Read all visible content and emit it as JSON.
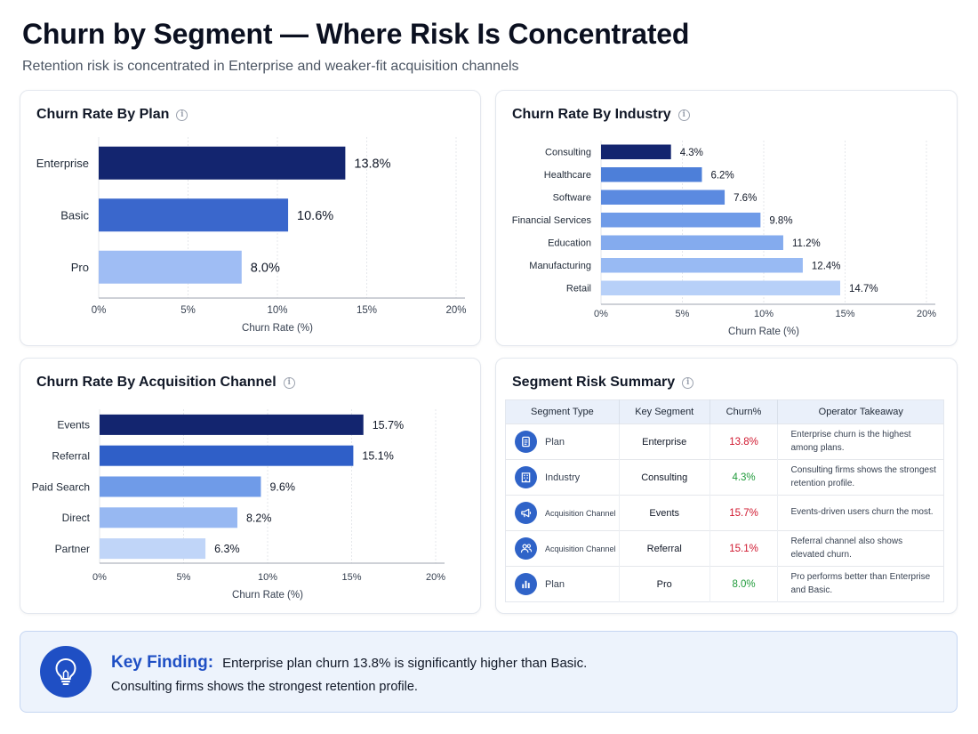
{
  "header": {
    "title": "Churn by Segment — Where Risk Is Concentrated",
    "subtitle": "Retention risk is concentrated in Enterprise and weaker-fit acquisition channels"
  },
  "chart_data": [
    {
      "id": "plan",
      "type": "bar",
      "orientation": "horizontal",
      "title": "Churn Rate By Plan",
      "categories": [
        "Enterprise",
        "Basic",
        "Pro"
      ],
      "values": [
        13.8,
        10.6,
        8.0
      ],
      "value_labels": [
        "13.8%",
        "10.6%",
        "8.0%"
      ],
      "colors": [
        "#13256f",
        "#3a67cc",
        "#9fbdf4"
      ],
      "xlabel": "Churn Rate (%)",
      "xlim": [
        0,
        20
      ],
      "ticks": [
        0,
        5,
        10,
        15,
        20
      ],
      "tick_labels": [
        "0%",
        "5%",
        "10%",
        "15%",
        "20%"
      ],
      "grid": true
    },
    {
      "id": "industry",
      "type": "bar",
      "orientation": "horizontal",
      "title": "Churn Rate By Industry",
      "categories": [
        "Consulting",
        "Healthcare",
        "Software",
        "Financial Services",
        "Education",
        "Manufacturing",
        "Retail"
      ],
      "values": [
        4.3,
        6.2,
        7.6,
        9.8,
        11.2,
        12.4,
        14.7
      ],
      "value_labels": [
        "4.3%",
        "6.2%",
        "7.6%",
        "9.8%",
        "11.2%",
        "12.4%",
        "14.7%"
      ],
      "colors": [
        "#13256f",
        "#4d7fd9",
        "#5b8ae0",
        "#6f9be8",
        "#84abee",
        "#98baf3",
        "#b7d0f8"
      ],
      "xlabel": "Churn Rate (%)",
      "xlim": [
        0,
        20
      ],
      "ticks": [
        0,
        5,
        10,
        15,
        20
      ],
      "tick_labels": [
        "0%",
        "5%",
        "10%",
        "15%",
        "20%"
      ],
      "grid": true
    },
    {
      "id": "channel",
      "type": "bar",
      "orientation": "horizontal",
      "title": "Churn Rate By Acquisition Channel",
      "categories": [
        "Events",
        "Referral",
        "Paid Search",
        "Direct",
        "Partner"
      ],
      "values": [
        15.7,
        15.1,
        9.6,
        8.2,
        6.3
      ],
      "value_labels": [
        "15.7%",
        "15.1%",
        "9.6%",
        "8.2%",
        "6.3%"
      ],
      "colors": [
        "#13256f",
        "#2f5fc8",
        "#6f9be8",
        "#97b8f2",
        "#c0d5f8"
      ],
      "xlabel": "Churn Rate (%)",
      "xlim": [
        0,
        20
      ],
      "ticks": [
        0,
        5,
        10,
        15,
        20
      ],
      "tick_labels": [
        "0%",
        "5%",
        "10%",
        "15%",
        "20%"
      ],
      "grid": true
    }
  ],
  "summary": {
    "title": "Segment Risk Summary",
    "headers": [
      "Segment Type",
      "Key Segment",
      "Churn%",
      "Operator Takeaway"
    ],
    "rows": [
      {
        "icon": "document-icon",
        "type": "Plan",
        "segment": "Enterprise",
        "churn": "13.8%",
        "status_color": "#d0182f",
        "takeaway": "Enterprise churn is the highest among plans."
      },
      {
        "icon": "building-icon",
        "type": "Industry",
        "segment": "Consulting",
        "churn": "4.3%",
        "status_color": "#1f9a3a",
        "takeaway": "Consulting firms shows the strongest retention profile."
      },
      {
        "icon": "megaphone-icon",
        "type": "Acquisition Channel",
        "segment": "Events",
        "churn": "15.7%",
        "status_color": "#d0182f",
        "takeaway": "Events-driven users churn the most."
      },
      {
        "icon": "users-icon",
        "type": "Acquisition Channel",
        "segment": "Referral",
        "churn": "15.1%",
        "status_color": "#d0182f",
        "takeaway": "Referral channel also shows elevated churn."
      },
      {
        "icon": "bar-chart-icon",
        "type": "Plan",
        "segment": "Pro",
        "churn": "8.0%",
        "status_color": "#1f9a3a",
        "takeaway": "Pro performs better than Enterprise and Basic."
      }
    ]
  },
  "finding": {
    "icon": "lightbulb-icon",
    "label": "Key Finding:",
    "line1": "Enterprise plan churn 13.8% is significantly higher than Basic.",
    "line2": "Consulting firms shows the strongest retention profile."
  },
  "colors": {
    "accent": "#1f4fc4",
    "high_risk": "#d0182f",
    "low_risk": "#1f9a3a"
  }
}
